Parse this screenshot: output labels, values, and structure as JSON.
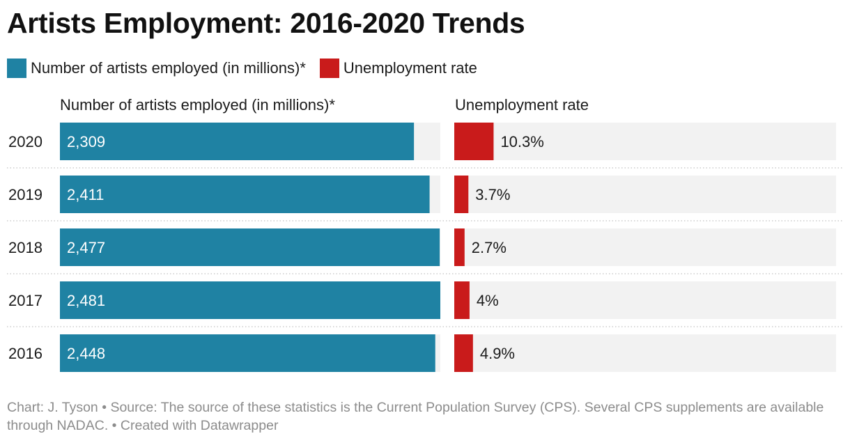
{
  "title": "Artists Employment: 2016-2020 Trends",
  "legend": [
    {
      "label": "Number of artists employed (in millions)*",
      "color": "#1f82a3"
    },
    {
      "label": "Unemployment rate",
      "color": "#c91b1b"
    }
  ],
  "colors": {
    "track": "#f2f2f2",
    "divider": "#cccccc"
  },
  "chart_data": {
    "type": "bar",
    "orientation": "horizontal",
    "categories": [
      "2020",
      "2019",
      "2018",
      "2017",
      "2016"
    ],
    "series": [
      {
        "name": "Number of artists employed (in millions)*",
        "values": [
          2309,
          2411,
          2477,
          2481,
          2448
        ],
        "labels": [
          "2,309",
          "2,411",
          "2,477",
          "2,481",
          "2,448"
        ],
        "max": 2481,
        "color": "#1f82a3"
      },
      {
        "name": "Unemployment rate",
        "values": [
          10.3,
          3.7,
          2.7,
          4,
          4.9
        ],
        "labels": [
          "10.3%",
          "3.7%",
          "2.7%",
          "4%",
          "4.9%"
        ],
        "max": 100,
        "color": "#c91b1b"
      }
    ]
  },
  "footer": {
    "credit": "Chart: J. Tyson",
    "source": "Source: The source of these statistics is the Current Population Survey (CPS). Several CPS supplements are available through NADAC.",
    "created": "Created with Datawrapper",
    "separator": " • "
  }
}
